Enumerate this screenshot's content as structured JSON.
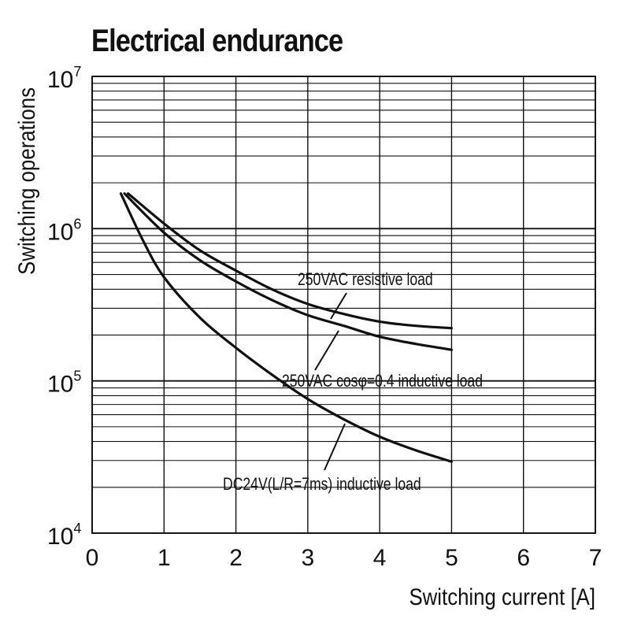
{
  "chart_data": {
    "type": "line",
    "title": "Electrical endurance",
    "xlabel": "Switching current [A]",
    "ylabel": "Switching operations",
    "xlim": [
      0,
      7
    ],
    "ylim": [
      10000,
      10000000
    ],
    "yscale": "log",
    "grid": true,
    "x_ticks": [
      "0",
      "1",
      "2",
      "3",
      "4",
      "5",
      "6",
      "7"
    ],
    "y_ticks": [
      {
        "base": "10",
        "exp": "4"
      },
      {
        "base": "10",
        "exp": "5"
      },
      {
        "base": "10",
        "exp": "6"
      },
      {
        "base": "10",
        "exp": "7"
      }
    ],
    "series": [
      {
        "name": "250VAC resistive load",
        "x": [
          0.5,
          1,
          1.5,
          2,
          2.5,
          3,
          3.5,
          4,
          4.5,
          5
        ],
        "y": [
          1700000,
          1080000,
          720000,
          530000,
          400000,
          320000,
          275000,
          245000,
          230000,
          222000
        ]
      },
      {
        "name": "250VAC cosφ=0.4 inductive load",
        "x": [
          0.45,
          1,
          1.5,
          2,
          2.5,
          3,
          3.5,
          4,
          4.5,
          5
        ],
        "y": [
          1700000,
          940000,
          620000,
          450000,
          340000,
          270000,
          230000,
          195000,
          175000,
          160000
        ]
      },
      {
        "name": "DC24V(L/R=7ms) inductive load",
        "x": [
          0.4,
          0.7,
          1,
          1.5,
          2,
          2.5,
          3,
          3.5,
          4,
          4.5,
          5
        ],
        "y": [
          1700000,
          850000,
          480000,
          260000,
          165000,
          110000,
          76000,
          56000,
          43000,
          35000,
          29500
        ]
      }
    ]
  }
}
